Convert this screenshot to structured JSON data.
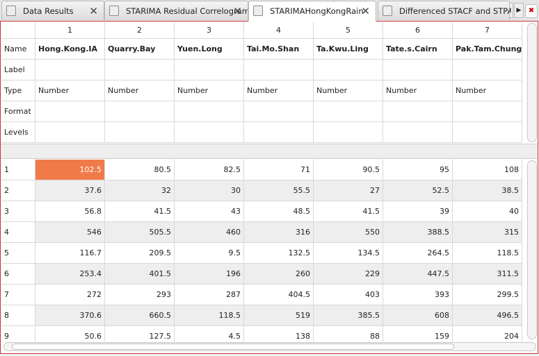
{
  "tabs": [
    {
      "label": "Data Results"
    },
    {
      "label": "STARIMA Residual Correlograms"
    },
    {
      "label": "STARIMAHongKongRain"
    },
    {
      "label": "Differenced STACF and STPAC"
    }
  ],
  "columns": [
    1,
    2,
    3,
    4,
    5,
    6,
    7
  ],
  "meta_rows": [
    {
      "label": "Name",
      "cells": [
        "Hong.Kong.IA",
        "Quarry.Bay",
        "Yuen.Long",
        "Tai.Mo.Shan",
        "Ta.Kwu.Ling",
        "Tate.s.Cairn",
        "Pak.Tam.Chung"
      ]
    },
    {
      "label": "Label"
    },
    {
      "label": "Type",
      "cells": [
        "Number",
        "Number",
        "Number",
        "Number",
        "Number",
        "Number",
        "Number"
      ]
    },
    {
      "label": "Format"
    },
    {
      "label": "Levels"
    }
  ],
  "rows": [
    {
      "index": 1,
      "values": [
        102.5,
        80.5,
        82.5,
        71,
        90.5,
        95,
        108
      ]
    },
    {
      "index": 2,
      "values": [
        37.6,
        32,
        30,
        55.5,
        27,
        52.5,
        38.5
      ]
    },
    {
      "index": 3,
      "values": [
        56.8,
        41.5,
        43,
        48.5,
        41.5,
        39,
        40
      ]
    },
    {
      "index": 4,
      "values": [
        546,
        505.5,
        460,
        316,
        550,
        388.5,
        315
      ]
    },
    {
      "index": 5,
      "values": [
        116.7,
        209.5,
        9.5,
        132.5,
        134.5,
        264.5,
        118.5
      ]
    },
    {
      "index": 6,
      "values": [
        253.4,
        401.5,
        196,
        260,
        229,
        447.5,
        311.5
      ]
    },
    {
      "index": 7,
      "values": [
        272,
        293,
        287,
        404.5,
        403,
        393,
        299.5
      ]
    },
    {
      "index": 8,
      "values": [
        370.6,
        660.5,
        118.5,
        519,
        385.5,
        608,
        496.5
      ]
    },
    {
      "index": 9,
      "values": [
        50.6,
        127.5,
        4.5,
        138,
        88,
        159,
        204
      ]
    }
  ]
}
